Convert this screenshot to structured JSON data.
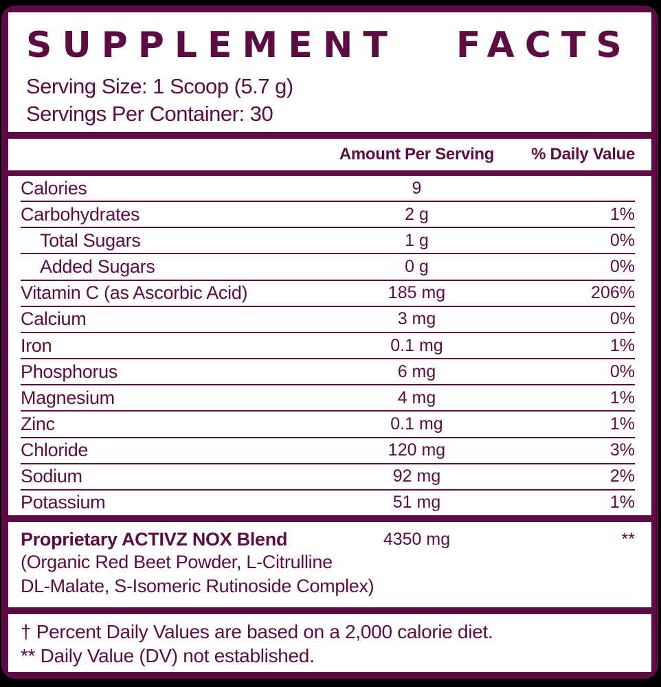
{
  "colors": {
    "accent": "#5C0B43",
    "panel_background": "#FFFFFF",
    "page_background": "#000000"
  },
  "header": {
    "title": "SUPPLEMENT FACTS",
    "serving_size": "Serving Size: 1 Scoop (5.7 g)",
    "servings_per_container": "Servings Per Container: 30"
  },
  "table": {
    "columns": {
      "amount": "Amount Per Serving",
      "dv": "% Daily Value"
    },
    "rows": [
      {
        "name": "Calories",
        "amount": "9",
        "dv": ""
      },
      {
        "name": "Carbohydrates",
        "amount": "2 g",
        "dv": "1%"
      },
      {
        "name": "Total Sugars",
        "amount": "1 g",
        "dv": "0%",
        "indent": true
      },
      {
        "name": "Added Sugars",
        "amount": "0 g",
        "dv": "0%",
        "indent": true
      },
      {
        "name": "Vitamin C (as Ascorbic Acid)",
        "amount": "185 mg",
        "dv": "206%"
      },
      {
        "name": "Calcium",
        "amount": "3 mg",
        "dv": "0%"
      },
      {
        "name": "Iron",
        "amount": "0.1 mg",
        "dv": "1%"
      },
      {
        "name": "Phosphorus",
        "amount": "6 mg",
        "dv": "0%"
      },
      {
        "name": "Magnesium",
        "amount": "4 mg",
        "dv": "1%"
      },
      {
        "name": "Zinc",
        "amount": "0.1 mg",
        "dv": "1%"
      },
      {
        "name": "Chloride",
        "amount": "120 mg",
        "dv": "3%"
      },
      {
        "name": "Sodium",
        "amount": "92 mg",
        "dv": "2%"
      },
      {
        "name": "Potassium",
        "amount": "51 mg",
        "dv": "1%"
      }
    ]
  },
  "blend": {
    "name": "Proprietary ACTIVZ NOX Blend",
    "amount": "4350 mg",
    "dv": "**",
    "description_line1": "(Organic Red Beet Powder, L-Citrulline",
    "description_line2": "DL-Malate, S-Isomeric Rutinoside Complex)"
  },
  "footnotes": {
    "line1": "† Percent Daily Values are based on a 2,000 calorie diet.",
    "line2": "** Daily Value (DV) not established."
  }
}
